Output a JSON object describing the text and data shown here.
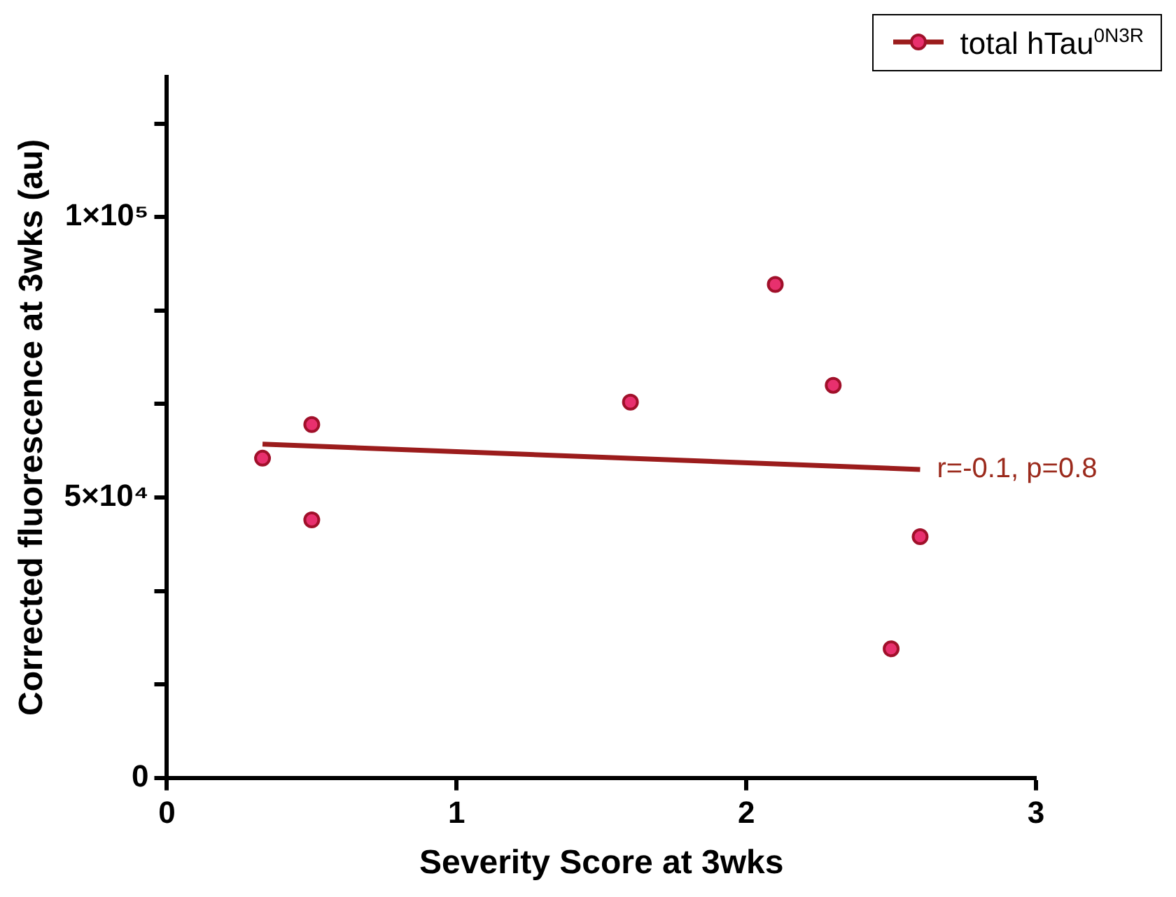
{
  "chart_data": {
    "type": "scatter",
    "xlabel": "Severity Score at 3wks",
    "ylabel": "Corrected fluorescence at 3wks (au)",
    "series": [
      {
        "name": "total hTau$^{0N3R}$",
        "marker": "circle",
        "color": "#e8306e",
        "x": [
          0.33,
          0.5,
          0.5,
          1.6,
          2.1,
          2.3,
          2.5,
          2.6
        ],
        "values": [
          57000,
          63000,
          46000,
          67000,
          88000,
          70000,
          23000,
          43000
        ]
      },
      {
        "type": "line",
        "marker": "none",
        "color": "#9b1c1c",
        "x": [
          0.33,
          2.6
        ],
        "values": [
          59500,
          55000
        ]
      }
    ],
    "xlim": [
      0,
      3
    ],
    "xticks": [
      0,
      1,
      2,
      3
    ],
    "ylim": [
      0,
      125000
    ],
    "yticks": [
      0,
      {
        "value": 16667,
        "label": null
      },
      {
        "value": 33333,
        "label": null
      },
      {
        "value": 50000,
        "label": "5×10⁴"
      },
      {
        "value": 66667,
        "label": null
      },
      {
        "value": 83333,
        "label": null
      },
      {
        "value": 100000,
        "label": "1×10⁵"
      },
      {
        "value": 116667,
        "label": null
      }
    ],
    "annotations": [
      {
        "text": "r=-0.1, p=0.8",
        "x": 2.6,
        "y": 55000
      }
    ],
    "legend": "top right",
    "grid": false
  }
}
